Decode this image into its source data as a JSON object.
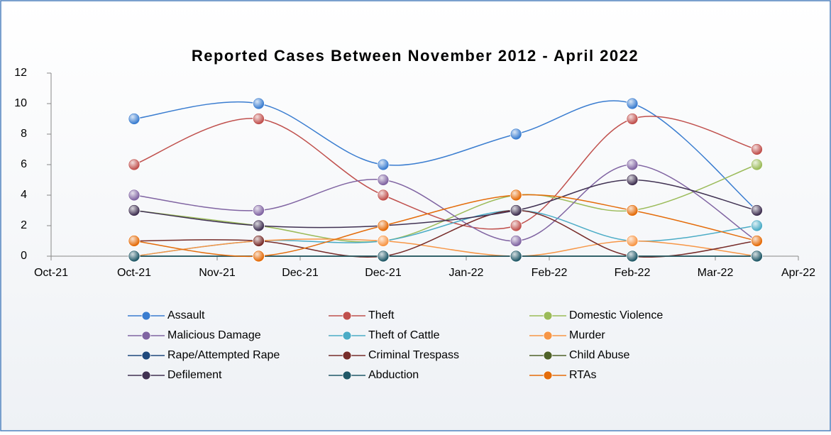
{
  "chart_data": {
    "type": "line",
    "title": "Reported Cases Between November 2012 - April 2022",
    "x": [
      1,
      2.5,
      4,
      5.6,
      7,
      8.5
    ],
    "xlim": [
      0,
      9
    ],
    "xticks": [
      {
        "value": 0,
        "label": "Oct-21"
      },
      {
        "value": 1,
        "label": "Oct-21"
      },
      {
        "value": 2,
        "label": "Nov-21"
      },
      {
        "value": 3,
        "label": "Dec-21"
      },
      {
        "value": 4,
        "label": "Dec-21"
      },
      {
        "value": 5,
        "label": "Jan-22"
      },
      {
        "value": 6,
        "label": "Feb-22"
      },
      {
        "value": 7,
        "label": "Feb-22"
      },
      {
        "value": 8,
        "label": "Mar-22"
      },
      {
        "value": 9,
        "label": "Apr-22"
      }
    ],
    "ylim": [
      0,
      12
    ],
    "yticks": [
      0,
      2,
      4,
      6,
      8,
      10,
      12
    ],
    "smooth": true,
    "series": [
      {
        "name": "Assault",
        "color": "#3a7dd0",
        "values": [
          9,
          10,
          6,
          8,
          10,
          3
        ]
      },
      {
        "name": "Theft",
        "color": "#c0504d",
        "values": [
          6,
          9,
          4,
          2,
          9,
          7
        ]
      },
      {
        "name": "Domestic Violence",
        "color": "#9bbb59",
        "values": [
          3,
          2,
          1,
          4,
          3,
          6
        ]
      },
      {
        "name": "Malicious Damage",
        "color": "#8064a2",
        "values": [
          4,
          3,
          5,
          1,
          6,
          1
        ]
      },
      {
        "name": "Theft of Cattle",
        "color": "#4bacc6",
        "values": [
          0,
          1,
          1,
          3,
          1,
          2
        ]
      },
      {
        "name": "Murder",
        "color": "#f79646",
        "values": [
          0,
          1,
          1,
          0,
          1,
          0
        ]
      },
      {
        "name": "Rape/Attempted Rape",
        "color": "#1f497d",
        "values": [
          0,
          0,
          0,
          0,
          0,
          0
        ]
      },
      {
        "name": "Criminal Trespass",
        "color": "#772c2a",
        "values": [
          1,
          1,
          0,
          3,
          0,
          1
        ]
      },
      {
        "name": "Child Abuse",
        "color": "#4f6228",
        "values": [
          0,
          0,
          0,
          0,
          0,
          0
        ]
      },
      {
        "name": "Defilement",
        "color": "#403152",
        "values": [
          3,
          2,
          2,
          3,
          5,
          3
        ]
      },
      {
        "name": "Abduction",
        "color": "#215968",
        "values": [
          0,
          0,
          0,
          0,
          0,
          0
        ]
      },
      {
        "name": "RTAs",
        "color": "#e46c0a",
        "values": [
          1,
          0,
          2,
          4,
          3,
          1
        ]
      }
    ]
  }
}
